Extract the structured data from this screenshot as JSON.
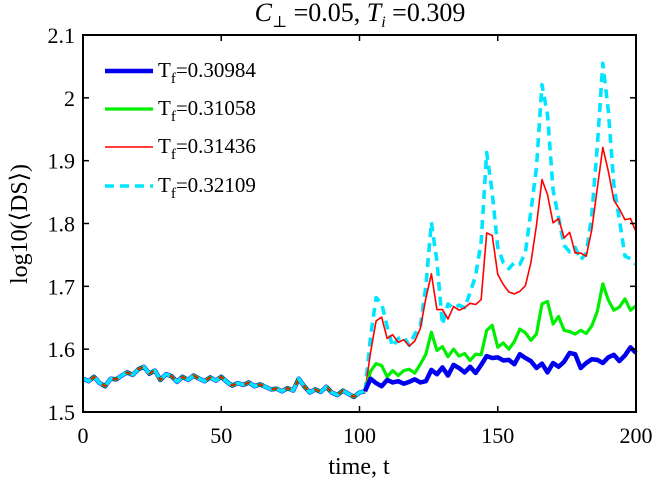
{
  "chart_data": {
    "type": "line",
    "title": "C⊥ =0.05, Ti =0.309",
    "title_parts": {
      "c_symbol": "C",
      "c_subscript": "⊥",
      "c_value": " =0.05, ",
      "t_symbol": "T",
      "t_subscript": "i",
      "t_value": " =0.309"
    },
    "xlabel": "time, t",
    "ylabel": "log10(⟨DS⟩)",
    "xlim": [
      0,
      200
    ],
    "ylim": [
      1.5,
      2.1
    ],
    "xticks": [
      0,
      50,
      100,
      150,
      200
    ],
    "yticks": [
      1.5,
      1.6,
      1.7,
      1.8,
      1.9,
      2.0,
      2.1
    ],
    "xtick_labels": [
      "0",
      "50",
      "100",
      "150",
      "200"
    ],
    "ytick_labels": [
      "1.5",
      "1.6",
      "1.7",
      "1.8",
      "1.9",
      "2",
      "2.1"
    ],
    "legend_position": "top-left",
    "common_history": {
      "x": [
        0,
        2,
        4,
        6,
        8,
        10,
        12,
        14,
        16,
        18,
        20,
        22,
        24,
        26,
        28,
        30,
        32,
        34,
        36,
        38,
        40,
        42,
        44,
        46,
        48,
        50,
        52,
        54,
        56,
        58,
        60,
        62,
        64,
        66,
        68,
        70,
        72,
        74,
        76,
        78,
        80,
        82,
        84,
        86,
        88,
        90,
        92,
        94,
        96,
        98,
        100,
        102
      ],
      "y": [
        1.553,
        1.549,
        1.556,
        1.546,
        1.541,
        1.553,
        1.552,
        1.558,
        1.563,
        1.559,
        1.568,
        1.572,
        1.561,
        1.566,
        1.551,
        1.56,
        1.557,
        1.548,
        1.556,
        1.551,
        1.558,
        1.553,
        1.549,
        1.555,
        1.55,
        1.556,
        1.548,
        1.542,
        1.546,
        1.543,
        1.547,
        1.541,
        1.544,
        1.54,
        1.536,
        1.537,
        1.533,
        1.538,
        1.534,
        1.553,
        1.541,
        1.531,
        1.536,
        1.532,
        1.54,
        1.531,
        1.527,
        1.534,
        1.529,
        1.524,
        1.531,
        1.533
      ]
    },
    "series": [
      {
        "name": "Tf=0.30984",
        "label_main": "T",
        "label_sub": "f",
        "label_value": "=0.30984",
        "color": "#0000ee",
        "dash": "solid",
        "x": [
          102,
          104,
          106,
          108,
          110,
          112,
          114,
          116,
          118,
          120,
          122,
          124,
          126,
          128,
          130,
          132,
          134,
          136,
          138,
          140,
          142,
          144,
          146,
          148,
          150,
          152,
          154,
          156,
          158,
          160,
          162,
          164,
          166,
          168,
          170,
          172,
          174,
          176,
          178,
          180,
          182,
          184,
          186,
          188,
          190,
          192,
          194,
          196,
          198,
          200
        ],
        "y": [
          1.533,
          1.553,
          1.546,
          1.541,
          1.551,
          1.547,
          1.549,
          1.545,
          1.548,
          1.552,
          1.547,
          1.549,
          1.567,
          1.56,
          1.571,
          1.558,
          1.575,
          1.57,
          1.563,
          1.572,
          1.562,
          1.575,
          1.589,
          1.586,
          1.587,
          1.582,
          1.583,
          1.576,
          1.592,
          1.586,
          1.581,
          1.57,
          1.577,
          1.563,
          1.578,
          1.572,
          1.58,
          1.594,
          1.592,
          1.57,
          1.578,
          1.584,
          1.583,
          1.578,
          1.587,
          1.591,
          1.581,
          1.59,
          1.603,
          1.594
        ]
      },
      {
        "name": "Tf=0.31058",
        "label_main": "T",
        "label_sub": "f",
        "label_value": "=0.31058",
        "color": "#00ee00",
        "dash": "solid",
        "x": [
          102,
          104,
          106,
          108,
          110,
          112,
          114,
          116,
          118,
          120,
          122,
          124,
          126,
          128,
          130,
          132,
          134,
          136,
          138,
          140,
          142,
          144,
          146,
          148,
          150,
          152,
          154,
          156,
          158,
          160,
          162,
          164,
          166,
          168,
          170,
          172,
          174,
          176,
          178,
          180,
          182,
          184,
          186,
          188,
          190,
          192,
          194,
          196,
          198,
          200
        ],
        "y": [
          1.533,
          1.565,
          1.577,
          1.574,
          1.556,
          1.566,
          1.558,
          1.566,
          1.568,
          1.562,
          1.576,
          1.592,
          1.627,
          1.598,
          1.604,
          1.588,
          1.6,
          1.589,
          1.593,
          1.582,
          1.592,
          1.591,
          1.63,
          1.638,
          1.603,
          1.61,
          1.6,
          1.612,
          1.632,
          1.626,
          1.614,
          1.624,
          1.672,
          1.676,
          1.64,
          1.652,
          1.63,
          1.628,
          1.624,
          1.63,
          1.625,
          1.637,
          1.66,
          1.704,
          1.678,
          1.662,
          1.667,
          1.68,
          1.662,
          1.669
        ]
      },
      {
        "name": "Tf=0.31436",
        "label_main": "T",
        "label_sub": "f",
        "label_value": "=0.31436",
        "color": "#ff0000",
        "dash": "solid",
        "x": [
          102,
          104,
          106,
          108,
          110,
          112,
          114,
          116,
          118,
          120,
          122,
          124,
          126,
          128,
          130,
          132,
          134,
          136,
          138,
          140,
          142,
          144,
          146,
          148,
          150,
          152,
          154,
          156,
          158,
          160,
          162,
          164,
          166,
          168,
          170,
          172,
          174,
          176,
          178,
          180,
          182,
          184,
          186,
          188,
          190,
          192,
          194,
          196,
          198,
          200
        ],
        "y": [
          1.533,
          1.595,
          1.645,
          1.651,
          1.617,
          1.623,
          1.611,
          1.615,
          1.605,
          1.613,
          1.633,
          1.681,
          1.72,
          1.663,
          1.663,
          1.648,
          1.668,
          1.662,
          1.666,
          1.673,
          1.671,
          1.679,
          1.785,
          1.781,
          1.719,
          1.703,
          1.691,
          1.688,
          1.692,
          1.701,
          1.738,
          1.797,
          1.87,
          1.846,
          1.801,
          1.808,
          1.777,
          1.786,
          1.753,
          1.753,
          1.748,
          1.79,
          1.856,
          1.921,
          1.883,
          1.837,
          1.823,
          1.806,
          1.808,
          1.787
        ]
      },
      {
        "name": "Tf=0.32109",
        "label_main": "T",
        "label_sub": "f",
        "label_value": "=0.32109",
        "color": "#00e5ff",
        "dash": "dashed",
        "x": [
          102,
          104,
          106,
          108,
          110,
          112,
          114,
          116,
          118,
          120,
          122,
          124,
          126,
          128,
          130,
          132,
          134,
          136,
          138,
          140,
          142,
          144,
          146,
          148,
          150,
          152,
          154,
          156,
          158,
          160,
          162,
          164,
          166,
          168,
          170,
          172,
          174,
          176,
          178,
          180,
          182,
          184,
          186,
          188,
          190,
          192,
          194,
          196,
          198,
          200
        ],
        "y": [
          1.533,
          1.62,
          1.682,
          1.673,
          1.636,
          1.604,
          1.617,
          1.62,
          1.606,
          1.624,
          1.636,
          1.7,
          1.802,
          1.74,
          1.639,
          1.672,
          1.665,
          1.67,
          1.666,
          1.69,
          1.717,
          1.771,
          1.913,
          1.849,
          1.762,
          1.738,
          1.728,
          1.738,
          1.735,
          1.754,
          1.82,
          1.889,
          2.021,
          1.973,
          1.854,
          1.809,
          1.765,
          1.755,
          1.762,
          1.742,
          1.753,
          1.813,
          1.923,
          2.055,
          1.979,
          1.861,
          1.806,
          1.748,
          1.744,
          1.735
        ]
      }
    ]
  }
}
